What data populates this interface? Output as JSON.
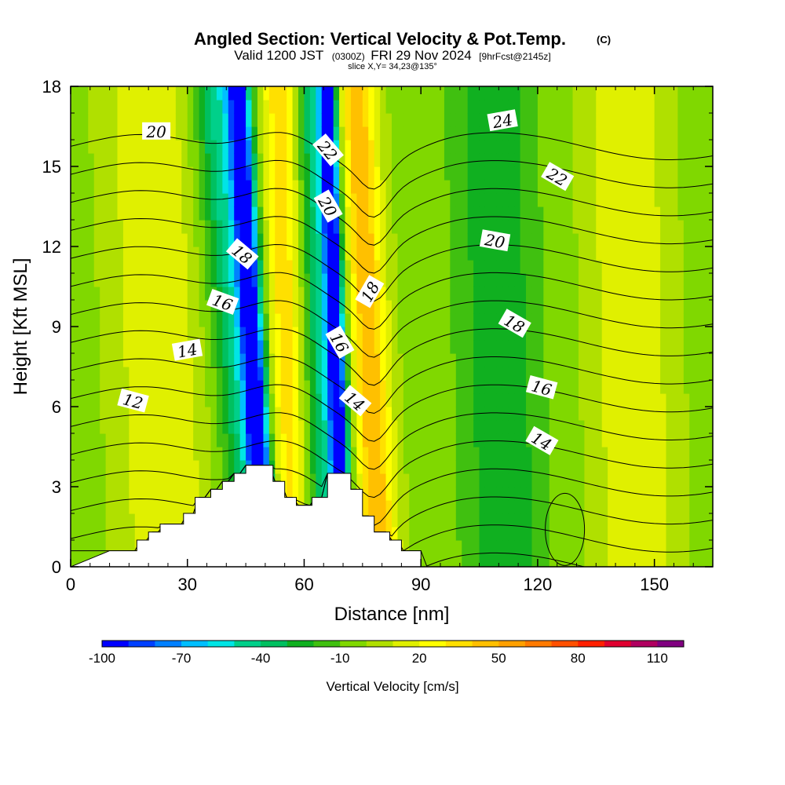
{
  "chart_data": {
    "type": "heatmap",
    "title": "Angled Section: Vertical Velocity & Pot.Temp.",
    "title_mark": "(C)",
    "subtitle": {
      "prefix": "Valid 1200 JST",
      "utc": "(0300Z)",
      "date": "FRI 29 Nov 2024",
      "fcst": "[9hrFcst@2145z]"
    },
    "slice_info": "slice X,Y= 34,23@135°",
    "xlabel": "Distance [nm]",
    "ylabel": "Height [Kft MSL]",
    "xlim": [
      0,
      165
    ],
    "ylim": [
      0,
      18
    ],
    "x_ticks": [
      0,
      30,
      60,
      90,
      120,
      150
    ],
    "y_ticks": [
      0,
      3,
      6,
      9,
      12,
      15,
      18
    ],
    "x_tick_labels": [
      "0",
      "30",
      "60",
      "90",
      "120",
      "150"
    ],
    "y_tick_labels": [
      "0",
      "3",
      "6",
      "9",
      "12",
      "15",
      "18"
    ],
    "colorbar": {
      "title": "Vertical Velocity [cm/s]",
      "labels": [
        "-100",
        "-70",
        "-40",
        "-10",
        "20",
        "50",
        "80",
        "110"
      ],
      "label_values": [
        -100,
        -70,
        -40,
        -10,
        20,
        50,
        80,
        110
      ],
      "min": -100,
      "max": 120,
      "step": 10,
      "colors": [
        "#0000ff",
        "#0040ff",
        "#0080ff",
        "#00bfff",
        "#00e5e5",
        "#00d08a",
        "#00c060",
        "#10b020",
        "#40c010",
        "#80d800",
        "#b0e000",
        "#e0f000",
        "#ffff00",
        "#ffe000",
        "#ffc000",
        "#ffa000",
        "#ff7a00",
        "#ff5000",
        "#ff2000",
        "#e00030",
        "#b00060",
        "#800080"
      ]
    },
    "velocity_bands": [
      {
        "x_top": 0,
        "x_bottom": 0,
        "width": 12,
        "value": -5
      },
      {
        "x_top": 20,
        "x_bottom": 25,
        "width": 18,
        "value": 20
      },
      {
        "x_top": 38,
        "x_bottom": 49,
        "width": 10,
        "value": -50
      },
      {
        "x_top": 43,
        "x_bottom": 50,
        "width": 4,
        "value": -90
      },
      {
        "x_top": 54,
        "x_bottom": 56,
        "width": 8,
        "value": 40
      },
      {
        "x_top": 63,
        "x_bottom": 68,
        "width": 9,
        "value": -50
      },
      {
        "x_top": 66,
        "x_bottom": 70,
        "width": 3,
        "value": -90
      },
      {
        "x_top": 73,
        "x_bottom": 79,
        "width": 8,
        "value": 50
      },
      {
        "x_top": 108,
        "x_bottom": 112,
        "width": 14,
        "value": -30
      },
      {
        "x_top": 142,
        "x_bottom": 146,
        "width": 16,
        "value": 20
      }
    ],
    "theta_contours": {
      "levels": [
        10,
        11,
        12,
        13,
        14,
        15,
        16,
        17,
        18,
        19,
        20,
        21,
        22,
        23,
        24,
        25
      ],
      "labels": [
        {
          "text": "20",
          "x": 22,
          "y": 16.3,
          "angle": 0
        },
        {
          "text": "22",
          "x": 66,
          "y": 15.6,
          "angle": 50
        },
        {
          "text": "20",
          "x": 66,
          "y": 13.5,
          "angle": 60
        },
        {
          "text": "18",
          "x": 44,
          "y": 11.7,
          "angle": 40
        },
        {
          "text": "18",
          "x": 77,
          "y": 10.3,
          "angle": -60
        },
        {
          "text": "16",
          "x": 39,
          "y": 9.9,
          "angle": 20
        },
        {
          "text": "16",
          "x": 69,
          "y": 8.4,
          "angle": 60
        },
        {
          "text": "14",
          "x": 30,
          "y": 8.1,
          "angle": -10
        },
        {
          "text": "14",
          "x": 73,
          "y": 6.2,
          "angle": 40
        },
        {
          "text": "12",
          "x": 16,
          "y": 6.2,
          "angle": 15
        },
        {
          "text": "24",
          "x": 111,
          "y": 16.7,
          "angle": -10
        },
        {
          "text": "22",
          "x": 125,
          "y": 14.6,
          "angle": 30
        },
        {
          "text": "20",
          "x": 109,
          "y": 12.2,
          "angle": 10
        },
        {
          "text": "18",
          "x": 114,
          "y": 9.1,
          "angle": 30
        },
        {
          "text": "16",
          "x": 121,
          "y": 6.7,
          "angle": 15
        },
        {
          "text": "14",
          "x": 121,
          "y": 4.7,
          "angle": 30
        }
      ]
    },
    "terrain_kft": [
      [
        0,
        0
      ],
      [
        10,
        0.6
      ],
      [
        17,
        0.6
      ],
      [
        17,
        1.0
      ],
      [
        20,
        1.0
      ],
      [
        20,
        1.3
      ],
      [
        23,
        1.3
      ],
      [
        23,
        1.6
      ],
      [
        29,
        1.6
      ],
      [
        29,
        2.0
      ],
      [
        32,
        2.0
      ],
      [
        32,
        2.6
      ],
      [
        36,
        2.6
      ],
      [
        36,
        2.9
      ],
      [
        39,
        2.9
      ],
      [
        39,
        3.2
      ],
      [
        42,
        3.2
      ],
      [
        42,
        3.5
      ],
      [
        45,
        3.5
      ],
      [
        45,
        3.8
      ],
      [
        52,
        3.8
      ],
      [
        52,
        3.2
      ],
      [
        55,
        3.2
      ],
      [
        55,
        2.6
      ],
      [
        58,
        2.6
      ],
      [
        58,
        2.3
      ],
      [
        62,
        2.3
      ],
      [
        62,
        2.6
      ],
      [
        66,
        2.6
      ],
      [
        66,
        3.5
      ],
      [
        72,
        3.5
      ],
      [
        72,
        2.9
      ],
      [
        75,
        2.9
      ],
      [
        75,
        1.9
      ],
      [
        78,
        1.9
      ],
      [
        78,
        1.3
      ],
      [
        82,
        1.3
      ],
      [
        82,
        1.0
      ],
      [
        85,
        1.0
      ],
      [
        85,
        0.6
      ],
      [
        90,
        0.6
      ],
      [
        90,
        0
      ],
      [
        0,
        0
      ]
    ]
  }
}
